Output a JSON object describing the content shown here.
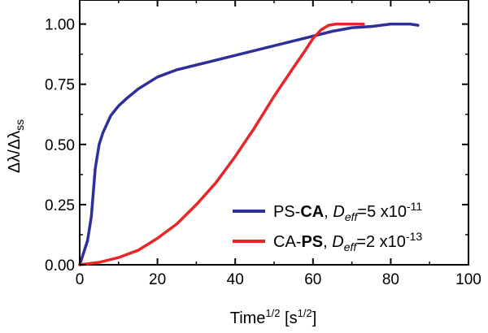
{
  "chart_data": {
    "type": "line",
    "xlabel": {
      "main": "Time",
      "sup": "1/2",
      "unit_open": " [s",
      "unit_sup": "1/2",
      "unit_close": "]"
    },
    "ylabel": {
      "a": "Δλ/Δλ",
      "sub": "ss"
    },
    "xlim": [
      0,
      100
    ],
    "ylim": [
      0,
      1.1
    ],
    "x_ticks": [
      "0",
      "20",
      "40",
      "60",
      "80",
      "100"
    ],
    "y_ticks": [
      "0.00",
      "0.25",
      "0.50",
      "0.75",
      "1.00"
    ],
    "grid": false,
    "legend_position": "bottom-right",
    "series": [
      {
        "name": "PS-CA, Deff=5 x10-11",
        "color": "#2e2f9a",
        "label_parts": {
          "p1": "PS-",
          "bold": "CA",
          "p2": ", ",
          "italic": "D",
          "sub": "eff",
          "p3": "=5 x10",
          "exp": "-11"
        },
        "x": [
          0,
          1,
          2,
          3,
          4,
          5,
          6,
          8,
          10,
          12,
          15,
          20,
          25,
          30,
          40,
          50,
          60,
          65,
          70,
          75,
          80,
          85,
          87
        ],
        "y": [
          0,
          0.05,
          0.1,
          0.2,
          0.4,
          0.5,
          0.55,
          0.62,
          0.66,
          0.69,
          0.73,
          0.78,
          0.81,
          0.83,
          0.87,
          0.91,
          0.95,
          0.97,
          0.985,
          0.99,
          1.0,
          1.0,
          0.995
        ]
      },
      {
        "name": "CA-PS, Deff=2 x10-13",
        "color": "#e8262a",
        "label_parts": {
          "p1": "CA-",
          "bold": "PS",
          "p2": ", ",
          "italic": "D",
          "sub": "eff",
          "p3": "=2 x10",
          "exp": "-13"
        },
        "x": [
          0,
          5,
          10,
          15,
          20,
          25,
          30,
          35,
          40,
          45,
          50,
          55,
          58,
          60,
          62,
          64,
          66,
          70,
          73
        ],
        "y": [
          0,
          0.01,
          0.03,
          0.06,
          0.11,
          0.17,
          0.25,
          0.34,
          0.45,
          0.57,
          0.7,
          0.82,
          0.89,
          0.94,
          0.975,
          0.995,
          1.0,
          1.0,
          1.0
        ]
      }
    ]
  }
}
